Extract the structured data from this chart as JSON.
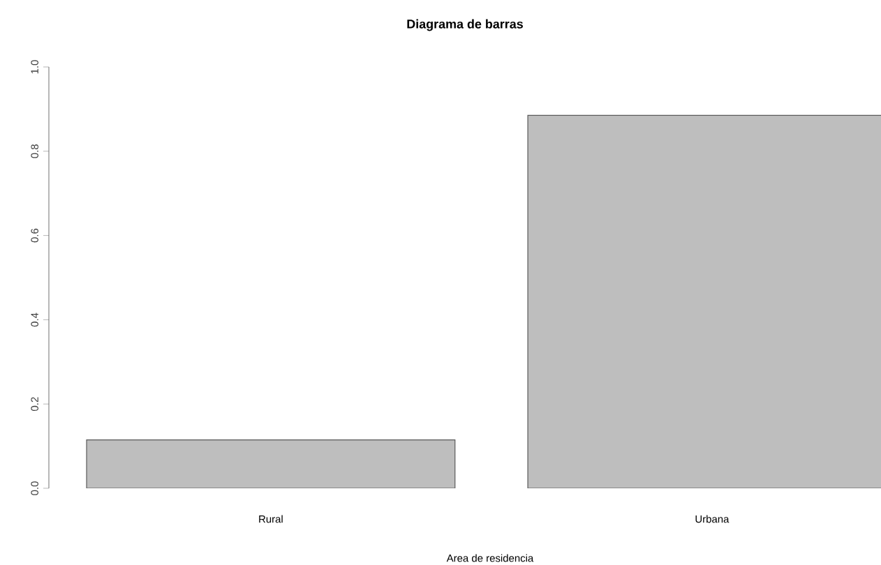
{
  "chart_data": {
    "type": "bar",
    "title": "Diagrama de barras",
    "xlabel": "Area de residencia",
    "categories": [
      "Rural",
      "Urbana"
    ],
    "values": [
      0.115,
      0.885
    ],
    "color": "#bebebe",
    "ylim": [
      0,
      1
    ],
    "yticks": [
      {
        "value": 0,
        "label": "0.0"
      },
      {
        "value": 0.2,
        "label": "0.2"
      },
      {
        "value": 0.4,
        "label": "0.4"
      },
      {
        "value": 0.6,
        "label": "0.6"
      },
      {
        "value": 0.8,
        "label": "0.8"
      },
      {
        "value": 1,
        "label": "1.0"
      }
    ],
    "grid": false
  }
}
